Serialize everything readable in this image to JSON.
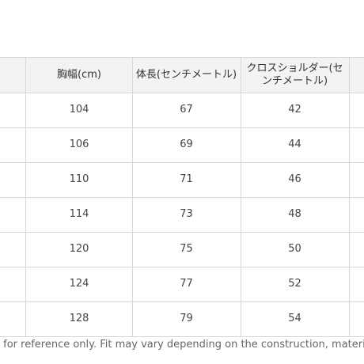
{
  "table": {
    "headers": [
      "",
      "胸幅(cm)",
      "体長(センチメートル)",
      "クロスショルダー(センチメートル)",
      ""
    ],
    "rows": [
      [
        "104",
        "67",
        "42"
      ],
      [
        "106",
        "69",
        "44"
      ],
      [
        "110",
        "71",
        "46"
      ],
      [
        "114",
        "73",
        "48"
      ],
      [
        "120",
        "75",
        "50"
      ],
      [
        "124",
        "77",
        "52"
      ],
      [
        "128",
        "79",
        "54"
      ]
    ]
  },
  "footer_note": "e for reference only. Fit may vary depending on the construction, materia",
  "colors": {
    "header_bg": "#f3f3f3",
    "grid_line": "#d6d6d6",
    "text": "#444444"
  }
}
